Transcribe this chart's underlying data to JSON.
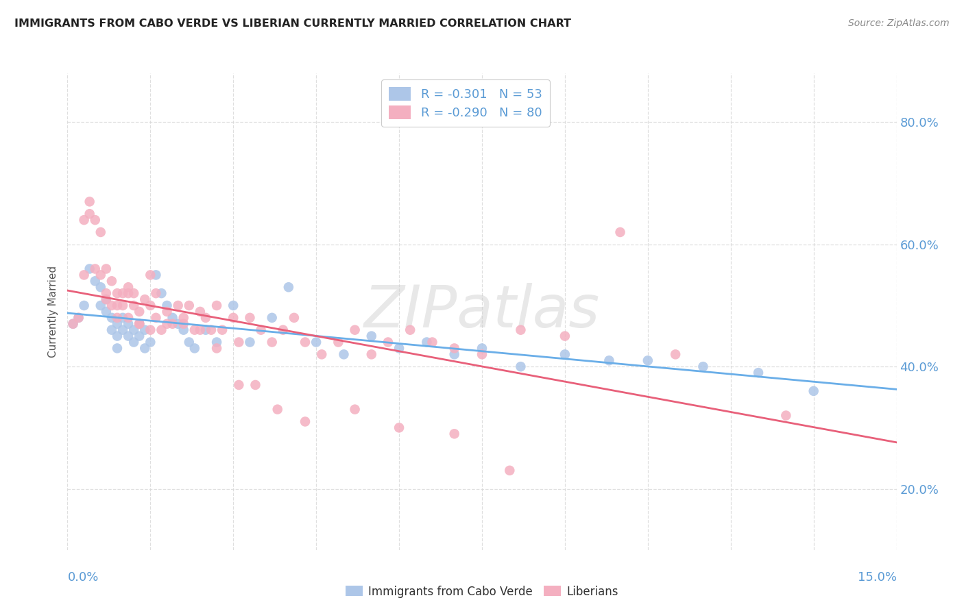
{
  "title": "IMMIGRANTS FROM CABO VERDE VS LIBERIAN CURRENTLY MARRIED CORRELATION CHART",
  "source": "Source: ZipAtlas.com",
  "ylabel": "Currently Married",
  "y_ticks": [
    "20.0%",
    "40.0%",
    "60.0%",
    "80.0%"
  ],
  "y_tick_vals": [
    0.2,
    0.4,
    0.6,
    0.8
  ],
  "x_range": [
    0.0,
    0.15
  ],
  "y_range": [
    0.1,
    0.88
  ],
  "legend_line1": "R = -0.301   N = 53",
  "legend_line2": "R = -0.290   N = 80",
  "series1_label": "Immigrants from Cabo Verde",
  "series2_label": "Liberians",
  "series1_color": "#adc6e8",
  "series2_color": "#f4afc0",
  "series1_line_color": "#6aaee8",
  "series2_line_color": "#e8607a",
  "watermark": "ZIPatlas",
  "cabo_verde_x": [
    0.001,
    0.002,
    0.003,
    0.004,
    0.005,
    0.006,
    0.006,
    0.007,
    0.007,
    0.008,
    0.008,
    0.009,
    0.009,
    0.009,
    0.01,
    0.01,
    0.011,
    0.011,
    0.012,
    0.012,
    0.013,
    0.013,
    0.014,
    0.014,
    0.015,
    0.016,
    0.017,
    0.018,
    0.019,
    0.02,
    0.021,
    0.022,
    0.023,
    0.025,
    0.027,
    0.03,
    0.033,
    0.037,
    0.04,
    0.045,
    0.05,
    0.055,
    0.06,
    0.065,
    0.07,
    0.075,
    0.082,
    0.09,
    0.098,
    0.105,
    0.115,
    0.125,
    0.135
  ],
  "cabo_verde_y": [
    0.47,
    0.48,
    0.5,
    0.56,
    0.54,
    0.53,
    0.5,
    0.51,
    0.49,
    0.48,
    0.46,
    0.47,
    0.45,
    0.43,
    0.46,
    0.48,
    0.45,
    0.47,
    0.44,
    0.46,
    0.45,
    0.47,
    0.43,
    0.46,
    0.44,
    0.55,
    0.52,
    0.5,
    0.48,
    0.47,
    0.46,
    0.44,
    0.43,
    0.46,
    0.44,
    0.5,
    0.44,
    0.48,
    0.53,
    0.44,
    0.42,
    0.45,
    0.43,
    0.44,
    0.42,
    0.43,
    0.4,
    0.42,
    0.41,
    0.41,
    0.4,
    0.39,
    0.36
  ],
  "liberian_x": [
    0.001,
    0.002,
    0.003,
    0.004,
    0.004,
    0.005,
    0.006,
    0.006,
    0.007,
    0.007,
    0.008,
    0.008,
    0.009,
    0.009,
    0.01,
    0.01,
    0.011,
    0.011,
    0.012,
    0.012,
    0.013,
    0.013,
    0.014,
    0.015,
    0.015,
    0.016,
    0.016,
    0.017,
    0.018,
    0.019,
    0.02,
    0.021,
    0.022,
    0.023,
    0.024,
    0.025,
    0.026,
    0.027,
    0.028,
    0.03,
    0.031,
    0.033,
    0.035,
    0.037,
    0.039,
    0.041,
    0.043,
    0.046,
    0.049,
    0.052,
    0.055,
    0.058,
    0.062,
    0.066,
    0.07,
    0.075,
    0.082,
    0.09,
    0.1,
    0.11,
    0.003,
    0.005,
    0.007,
    0.009,
    0.011,
    0.013,
    0.015,
    0.018,
    0.021,
    0.024,
    0.027,
    0.031,
    0.034,
    0.038,
    0.043,
    0.052,
    0.06,
    0.07,
    0.08,
    0.13
  ],
  "liberian_y": [
    0.47,
    0.48,
    0.64,
    0.65,
    0.67,
    0.64,
    0.62,
    0.55,
    0.52,
    0.56,
    0.5,
    0.54,
    0.48,
    0.52,
    0.5,
    0.52,
    0.48,
    0.53,
    0.52,
    0.5,
    0.49,
    0.47,
    0.51,
    0.5,
    0.46,
    0.48,
    0.52,
    0.46,
    0.49,
    0.47,
    0.5,
    0.47,
    0.5,
    0.46,
    0.49,
    0.48,
    0.46,
    0.5,
    0.46,
    0.48,
    0.44,
    0.48,
    0.46,
    0.44,
    0.46,
    0.48,
    0.44,
    0.42,
    0.44,
    0.46,
    0.42,
    0.44,
    0.46,
    0.44,
    0.43,
    0.42,
    0.46,
    0.45,
    0.62,
    0.42,
    0.55,
    0.56,
    0.51,
    0.5,
    0.52,
    0.47,
    0.55,
    0.47,
    0.48,
    0.46,
    0.43,
    0.37,
    0.37,
    0.33,
    0.31,
    0.33,
    0.3,
    0.29,
    0.23,
    0.32
  ]
}
